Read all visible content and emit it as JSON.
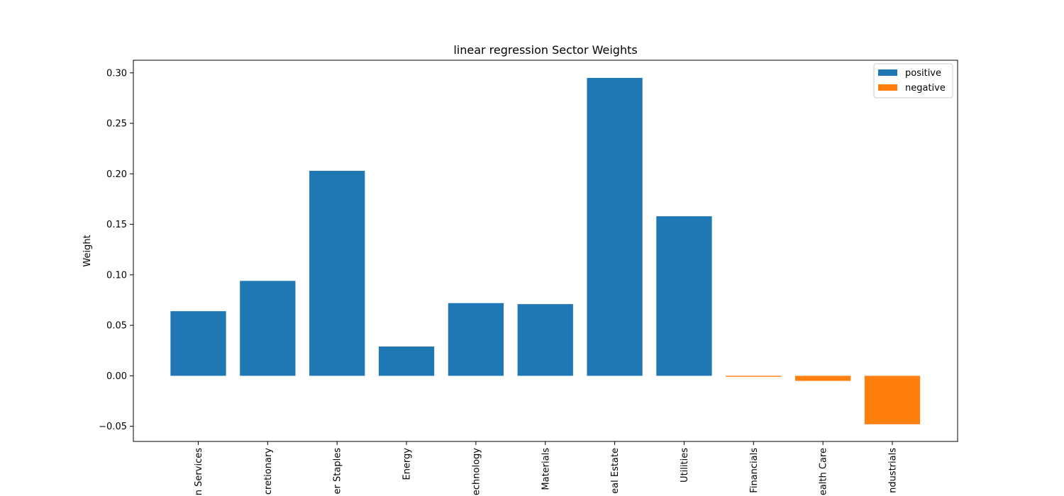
{
  "chart_data": {
    "type": "bar",
    "title": "linear regression Sector Weights",
    "xlabel": "",
    "ylabel": "Weight",
    "ylim": [
      -0.065,
      0.3125
    ],
    "yticks": [
      -0.05,
      0.0,
      0.05,
      0.1,
      0.15,
      0.2,
      0.25,
      0.3
    ],
    "ytick_labels": [
      "−0.05",
      "0.00",
      "0.05",
      "0.10",
      "0.15",
      "0.20",
      "0.25",
      "0.30"
    ],
    "categories": [
      "Communication Services",
      "Consumer Discretionary",
      "Consumer Staples",
      "Energy",
      "Information Technology",
      "Materials",
      "Real Estate",
      "Utilities",
      "Financials",
      "Health Care",
      "Industrials"
    ],
    "category_labels_visible": [
      "n Services",
      "cretionary",
      "er Staples",
      "Energy",
      "echnology",
      "Materials",
      "eal Estate",
      "Utilities",
      "Financials",
      "ealth Care",
      "ndustrials"
    ],
    "values": [
      0.064,
      0.094,
      0.203,
      0.029,
      0.072,
      0.071,
      0.295,
      0.158,
      -0.001,
      -0.005,
      -0.048
    ],
    "legend": {
      "placement": "top-right",
      "entries": [
        {
          "name": "positive",
          "color": "#1f77b4"
        },
        {
          "name": "negative",
          "color": "#ff7f0e"
        }
      ]
    },
    "colors": {
      "positive": "#1f77b4",
      "negative": "#ff7f0e"
    },
    "grid": false
  }
}
